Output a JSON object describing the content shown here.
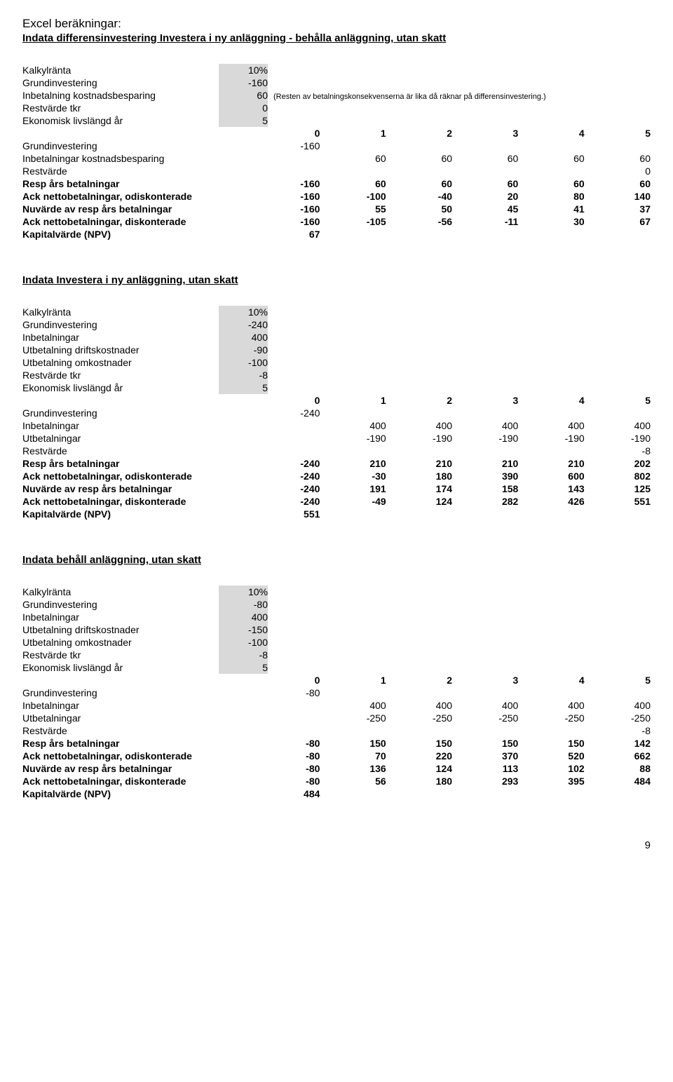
{
  "page": {
    "title": "Excel beräkningar:",
    "section1_title": "Indata differensinvestering Investera i ny anläggning - behålla anläggning, utan skatt",
    "section2_title": "Indata  Investera i ny anläggning, utan skatt",
    "section3_title": "Indata  behåll anläggning, utan skatt",
    "pagenum": "9",
    "note": "(Resten av betalningskonsekvenserna är lika då räknar på differensinvestering.)"
  },
  "colors": {
    "shaded_bg": "#d9d9d9",
    "text": "#000000"
  },
  "labels": {
    "kalkylranta": "Kalkylränta",
    "grundinvestering": "Grundinvestering",
    "inbet_kostbesparing": "Inbetalning kostnadsbesparing",
    "restvarde_tkr": "Restvärde tkr",
    "ekonomisk_livslangd": "Ekonomisk livslängd år",
    "inbetalningar_kostbesparing": "Inbetalningar kostnadsbesparing",
    "restvarde": "Restvärde",
    "resp_ars_betalningar": "Resp års betalningar",
    "ack_odisk": "Ack nettobetalningar, odiskonterade",
    "nuvarde_resp": "Nuvärde av resp års betalningar",
    "ack_disk": "Ack nettobetalningar, diskonterade",
    "kapitalvarde": "Kapitalvärde (NPV)",
    "inbetalningar": "Inbetalningar",
    "utbet_drift": "Utbetalning driftskostnader",
    "utbet_omk": "Utbetalning omkostnader",
    "utbetalningar": "Utbetalningar"
  },
  "cols_header": [
    "0",
    "1",
    "2",
    "3",
    "4",
    "5"
  ],
  "s1": {
    "inputs": {
      "kalkylranta": "10%",
      "grundinvestering": "-160",
      "inbet_kostbesparing": "60",
      "restvarde_tkr": "0",
      "ekonomisk_livslangd": "5"
    },
    "rows": {
      "grundinvestering": [
        "-160",
        "",
        "",
        "",
        "",
        ""
      ],
      "inbet_kost": [
        "",
        "60",
        "60",
        "60",
        "60",
        "60"
      ],
      "restvarde": [
        "",
        "",
        "",
        "",
        "",
        "0"
      ],
      "resp_ars": [
        "-160",
        "60",
        "60",
        "60",
        "60",
        "60"
      ],
      "ack_odisk": [
        "-160",
        "-100",
        "-40",
        "20",
        "80",
        "140"
      ],
      "nuvarde": [
        "-160",
        "55",
        "50",
        "45",
        "41",
        "37"
      ],
      "ack_disk": [
        "-160",
        "-105",
        "-56",
        "-11",
        "30",
        "67"
      ],
      "kapitalvarde": [
        "67",
        "",
        "",
        "",
        "",
        ""
      ]
    }
  },
  "s2": {
    "inputs": {
      "kalkylranta": "10%",
      "grundinvestering": "-240",
      "inbetalningar": "400",
      "utbet_drift": "-90",
      "utbet_omk": "-100",
      "restvarde_tkr": "-8",
      "ekonomisk_livslangd": "5"
    },
    "rows": {
      "grundinvestering": [
        "-240",
        "",
        "",
        "",
        "",
        ""
      ],
      "inbetalningar": [
        "",
        "400",
        "400",
        "400",
        "400",
        "400"
      ],
      "utbetalningar": [
        "",
        "-190",
        "-190",
        "-190",
        "-190",
        "-190"
      ],
      "restvarde": [
        "",
        "",
        "",
        "",
        "",
        "-8"
      ],
      "resp_ars": [
        "-240",
        "210",
        "210",
        "210",
        "210",
        "202"
      ],
      "ack_odisk": [
        "-240",
        "-30",
        "180",
        "390",
        "600",
        "802"
      ],
      "nuvarde": [
        "-240",
        "191",
        "174",
        "158",
        "143",
        "125"
      ],
      "ack_disk": [
        "-240",
        "-49",
        "124",
        "282",
        "426",
        "551"
      ],
      "kapitalvarde": [
        "551",
        "",
        "",
        "",
        "",
        ""
      ]
    }
  },
  "s3": {
    "inputs": {
      "kalkylranta": "10%",
      "grundinvestering": "-80",
      "inbetalningar": "400",
      "utbet_drift": "-150",
      "utbet_omk": "-100",
      "restvarde_tkr": "-8",
      "ekonomisk_livslangd": "5"
    },
    "rows": {
      "grundinvestering": [
        "-80",
        "",
        "",
        "",
        "",
        ""
      ],
      "inbetalningar": [
        "",
        "400",
        "400",
        "400",
        "400",
        "400"
      ],
      "utbetalningar": [
        "",
        "-250",
        "-250",
        "-250",
        "-250",
        "-250"
      ],
      "restvarde": [
        "",
        "",
        "",
        "",
        "",
        "-8"
      ],
      "resp_ars": [
        "-80",
        "150",
        "150",
        "150",
        "150",
        "142"
      ],
      "ack_odisk": [
        "-80",
        "70",
        "220",
        "370",
        "520",
        "662"
      ],
      "nuvarde": [
        "-80",
        "136",
        "124",
        "113",
        "102",
        "88"
      ],
      "ack_disk": [
        "-80",
        "56",
        "180",
        "293",
        "395",
        "484"
      ],
      "kapitalvarde": [
        "484",
        "",
        "",
        "",
        "",
        ""
      ]
    }
  }
}
